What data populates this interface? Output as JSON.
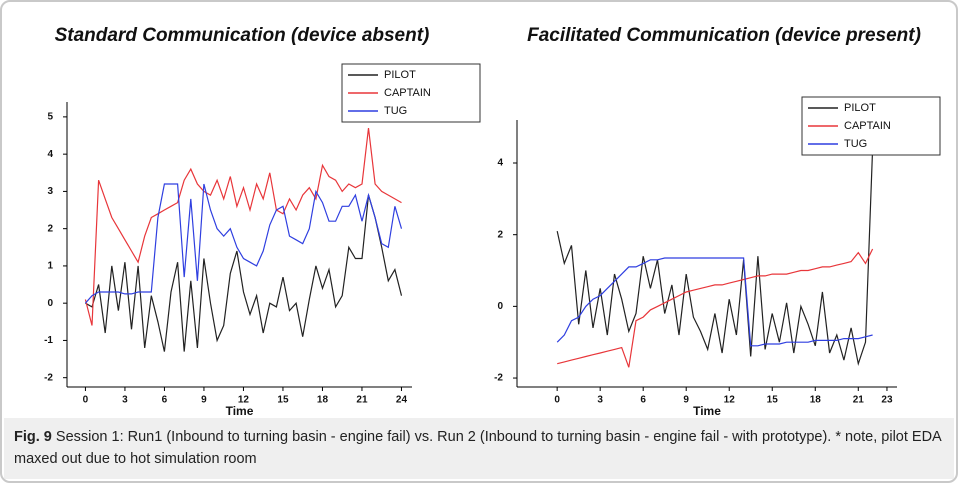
{
  "chart_data": [
    {
      "type": "line",
      "title": "Standard Communication (device absent)",
      "xlabel": "Time",
      "x": [
        0,
        0.5,
        1,
        1.5,
        2,
        2.5,
        3,
        3.5,
        4,
        4.5,
        5,
        5.5,
        6,
        6.5,
        7,
        7.5,
        8,
        8.5,
        9,
        9.5,
        10,
        10.5,
        11,
        11.5,
        12,
        12.5,
        13,
        13.5,
        14,
        14.5,
        15,
        15.5,
        16,
        16.5,
        17,
        17.5,
        18,
        18.5,
        19,
        19.5,
        20,
        20.5,
        21,
        21.5,
        22,
        22.5,
        23,
        23.5,
        24
      ],
      "series": [
        {
          "name": "PILOT",
          "color": "#222222",
          "values": [
            0,
            -0.1,
            0.5,
            -0.8,
            1.0,
            -0.2,
            1.1,
            -0.7,
            1.0,
            -1.2,
            0.2,
            -0.5,
            -1.3,
            0.3,
            1.1,
            -1.3,
            0.6,
            -1.2,
            1.2,
            0,
            -1.0,
            -0.6,
            0.8,
            1.4,
            0.3,
            -0.3,
            0.2,
            -0.8,
            0.0,
            -0.1,
            0.7,
            -0.2,
            0,
            -0.9,
            0.1,
            1.0,
            0.4,
            0.9,
            -0.1,
            0.2,
            1.5,
            1.2,
            1.2,
            2.9,
            2.3,
            1.5,
            0.6,
            0.9,
            0.2
          ]
        },
        {
          "name": "CAPTAIN",
          "color": "#e8363a",
          "values": [
            0.1,
            -0.6,
            3.3,
            2.8,
            2.3,
            2.0,
            1.7,
            1.4,
            1.1,
            1.8,
            2.3,
            2.4,
            2.5,
            2.6,
            2.7,
            3.3,
            3.6,
            3.2,
            3.0,
            2.9,
            3.3,
            2.8,
            3.4,
            2.6,
            3.1,
            2.5,
            3.2,
            2.8,
            3.5,
            2.5,
            2.4,
            2.8,
            2.5,
            2.9,
            3.1,
            2.8,
            3.7,
            3.4,
            3.3,
            3.0,
            3.2,
            3.1,
            3.2,
            4.7,
            3.2,
            3.0,
            2.9,
            2.8,
            2.7
          ]
        },
        {
          "name": "TUG",
          "color": "#2f3fe0",
          "values": [
            0,
            0.2,
            0.3,
            0.3,
            0.3,
            0.3,
            0.25,
            0.25,
            0.3,
            0.3,
            0.3,
            2.3,
            3.2,
            3.2,
            3.2,
            0.7,
            2.8,
            0.6,
            3.2,
            2.5,
            2.0,
            1.8,
            2.0,
            1.5,
            1.2,
            1.1,
            1.0,
            1.4,
            2.1,
            2.5,
            2.6,
            1.8,
            1.7,
            1.6,
            2.0,
            3.0,
            2.7,
            2.2,
            2.2,
            2.6,
            2.6,
            2.9,
            2.2,
            2.9,
            2.3,
            1.6,
            1.5,
            2.6,
            2.0
          ]
        }
      ],
      "xlim": [
        -1.4,
        24.8
      ],
      "xticks": [
        0,
        3,
        6,
        9,
        12,
        15,
        18,
        21,
        24
      ],
      "ylim": [
        -2.25,
        5.4
      ],
      "yticks": [
        -2,
        -1,
        0,
        1,
        2,
        3,
        4,
        5
      ],
      "legend": "upper right"
    },
    {
      "type": "line",
      "title": "Facilitated Communication (device present)",
      "xlabel": "Time",
      "x": [
        0,
        0.5,
        1,
        1.5,
        2,
        2.5,
        3,
        3.5,
        4,
        4.5,
        5,
        5.5,
        6,
        6.5,
        7,
        7.5,
        8,
        8.5,
        9,
        9.5,
        10,
        10.5,
        11,
        11.5,
        12,
        12.5,
        13,
        13.5,
        14,
        14.5,
        15,
        15.5,
        16,
        16.5,
        17,
        17.5,
        18,
        18.5,
        19,
        19.5,
        20,
        20.5,
        21,
        21.5,
        22
      ],
      "series": [
        {
          "name": "PILOT",
          "color": "#222222",
          "values": [
            2.1,
            1.2,
            1.7,
            -0.5,
            1.0,
            -0.6,
            0.5,
            -0.8,
            0.9,
            0.2,
            -0.7,
            -0.2,
            1.4,
            0.5,
            1.3,
            -0.2,
            0.6,
            -0.8,
            0.9,
            -0.3,
            -0.7,
            -1.2,
            -0.2,
            -1.3,
            0.2,
            -0.8,
            1.3,
            -1.4,
            1.4,
            -1.2,
            -0.2,
            -1.0,
            0.1,
            -1.3,
            0.0,
            -0.5,
            -1.1,
            0.4,
            -1.3,
            -0.8,
            -1.5,
            -0.6,
            -1.6,
            -1.0,
            4.4
          ]
        },
        {
          "name": "CAPTAIN",
          "color": "#e8363a",
          "values": [
            -1.6,
            -1.55,
            -1.5,
            -1.45,
            -1.4,
            -1.35,
            -1.3,
            -1.25,
            -1.2,
            -1.15,
            -1.7,
            -0.4,
            -0.3,
            -0.1,
            0,
            0.1,
            0.2,
            0.3,
            0.4,
            0.45,
            0.5,
            0.55,
            0.6,
            0.6,
            0.65,
            0.7,
            0.75,
            0.8,
            0.85,
            0.85,
            0.9,
            0.9,
            0.9,
            0.95,
            1.0,
            1.0,
            1.05,
            1.1,
            1.1,
            1.15,
            1.2,
            1.25,
            1.5,
            1.2,
            1.6
          ]
        },
        {
          "name": "TUG",
          "color": "#2f3fe0",
          "values": [
            -1.0,
            -0.8,
            -0.4,
            -0.3,
            0,
            0.2,
            0.3,
            0.5,
            0.7,
            0.9,
            1.1,
            1.1,
            1.2,
            1.3,
            1.3,
            1.35,
            1.35,
            1.35,
            1.35,
            1.35,
            1.35,
            1.35,
            1.35,
            1.35,
            1.35,
            1.35,
            1.35,
            -1.1,
            -1.1,
            -1.05,
            -1.05,
            -1.05,
            -1.0,
            -1.0,
            -1.0,
            -1.0,
            -0.95,
            -0.95,
            -0.95,
            -0.95,
            -0.9,
            -0.9,
            -0.9,
            -0.85,
            -0.8
          ]
        }
      ],
      "xlim": [
        -2.8,
        23.7
      ],
      "xticks": [
        0,
        3,
        6,
        9,
        12,
        15,
        18,
        21,
        23
      ],
      "ylim": [
        -2.25,
        5.2
      ],
      "yticks": [
        -2,
        0,
        2,
        4
      ],
      "legend": "upper right"
    }
  ],
  "caption": {
    "label": "Fig. 9",
    "text": "Session 1: Run1 (Inbound to turning basin - engine fail) vs. Run 2 (Inbound to turning basin - engine fail - with prototype). * note, pilot EDA maxed out due to hot simulation room"
  }
}
